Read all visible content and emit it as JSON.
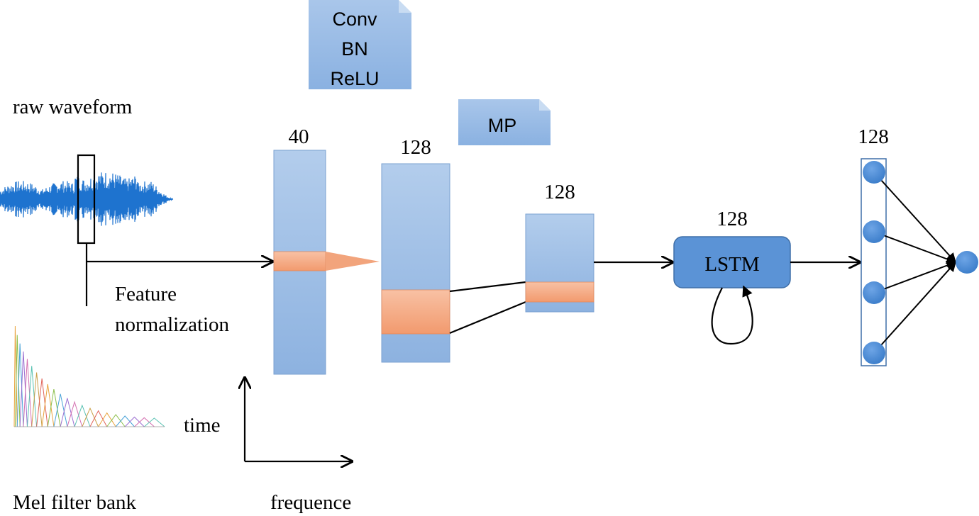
{
  "labels": {
    "raw_waveform": "raw waveform",
    "mel_filter_bank": "Mel filter bank",
    "feature_norm_line1": "Feature",
    "feature_norm_line2": "normalization",
    "time": "time",
    "frequence": "frequence"
  },
  "layers": {
    "conv_note": [
      "Conv",
      "BN",
      "ReLU"
    ],
    "mp_note": "MP",
    "input_dim": "40",
    "conv_dim": "128",
    "pool_dim": "128",
    "lstm_dim": "128",
    "lstm_label": "LSTM",
    "dense_dim": "128"
  },
  "colors": {
    "block_fill_top": "#aec8e9",
    "block_fill_bottom": "#8fb3e0",
    "block_stroke": "#7ba2d1",
    "highlight_fill": "#f5a47c",
    "highlight_fill_light": "#f9c7ad",
    "node_fill": "#4a8ad4",
    "lstm_fill": "#5b93d6",
    "waveform": "#1e73cf"
  }
}
